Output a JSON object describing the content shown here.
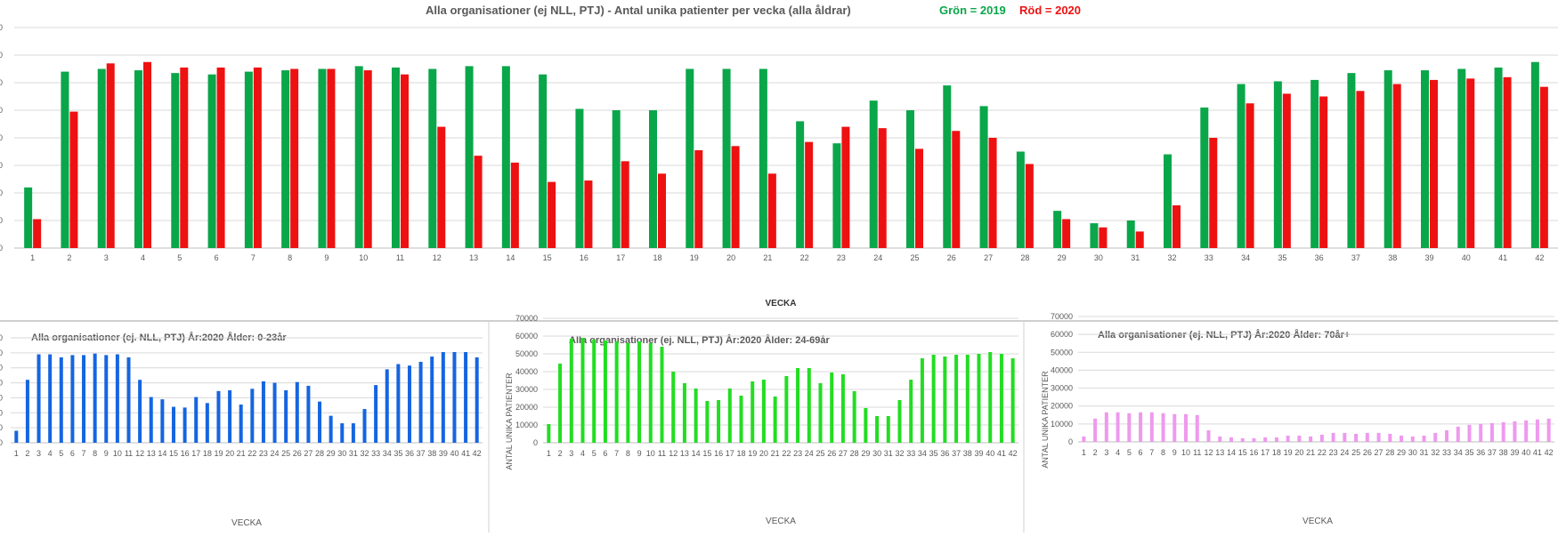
{
  "colors": {
    "green_2019": "#0aa64a",
    "red_2020": "#ee1111",
    "blue": "#1565e0",
    "lime": "#22dd22",
    "pink": "#ee99ee",
    "grid": "#d9d9d9",
    "text": "#595959"
  },
  "top": {
    "title_main": "Alla organisationer (ej NLL,  PTJ)   -   Antal unika patienter per vecka (alla åldrar)",
    "legend_green": "Grön = 2019",
    "legend_red": "Röd = 2020",
    "xlabel": "VECKA"
  },
  "bottom": {
    "left_title": "Alla organisationer (ej. NLL, PTJ)  År:2020   Ålder: 0-23år",
    "mid_title": "Alla organisationer (ej. NLL, PTJ)  År:2020   Ålder: 24-69år",
    "right_title": "Alla organisationer (ej. NLL, PTJ)  År:2020   Ålder: 70år+",
    "xlabel": "VECKA",
    "ylabel": "ANTAL UNIKA PATIENTER"
  },
  "chart_data": [
    {
      "type": "bar",
      "title": "Alla organisationer (ej NLL,  PTJ)   -   Antal unika patienter per vecka (alla åldrar)",
      "xlabel": "VECKA",
      "ylabel": "",
      "grid": true,
      "ylim": [
        0,
        8
      ],
      "tick_labels_visible": false,
      "categories": [
        "1",
        "2",
        "3",
        "4",
        "5",
        "6",
        "7",
        "8",
        "9",
        "10",
        "11",
        "12",
        "13",
        "14",
        "15",
        "16",
        "17",
        "18",
        "19",
        "20",
        "21",
        "22",
        "23",
        "24",
        "25",
        "26",
        "27",
        "28",
        "29",
        "30",
        "31",
        "32",
        "33",
        "34",
        "35",
        "36",
        "37",
        "38",
        "39",
        "40",
        "41",
        "42"
      ],
      "series": [
        {
          "name": "Grön = 2019",
          "color": "green_2019",
          "values": [
            2.2,
            6.4,
            6.5,
            6.45,
            6.35,
            6.3,
            6.4,
            6.45,
            6.5,
            6.6,
            6.55,
            6.5,
            6.6,
            6.6,
            6.3,
            5.05,
            5.0,
            5.0,
            6.5,
            6.5,
            6.5,
            4.6,
            3.8,
            5.35,
            5.0,
            5.9,
            5.15,
            3.5,
            1.35,
            0.9,
            1.0,
            3.4,
            5.1,
            5.95,
            6.05,
            6.1,
            6.35,
            6.45,
            6.45,
            6.5,
            6.55,
            6.75
          ]
        },
        {
          "name": "Röd = 2020",
          "color": "red_2020",
          "values": [
            1.05,
            4.95,
            6.7,
            6.75,
            6.55,
            6.55,
            6.55,
            6.5,
            6.5,
            6.45,
            6.3,
            4.4,
            3.35,
            3.1,
            2.4,
            2.45,
            3.15,
            2.7,
            3.55,
            3.7,
            2.7,
            3.85,
            4.4,
            4.35,
            3.6,
            4.25,
            4.0,
            3.05,
            1.05,
            0.75,
            0.6,
            1.55,
            4.0,
            5.25,
            5.6,
            5.5,
            5.7,
            5.95,
            6.1,
            6.15,
            6.2,
            5.85
          ]
        }
      ]
    },
    {
      "type": "bar",
      "title": "Alla organisationer (ej. NLL, PTJ)  År:2020   Ålder: 0-23år",
      "xlabel": "VECKA",
      "ylabel": "",
      "grid": true,
      "ylim": [
        0,
        7
      ],
      "tick_labels_visible": false,
      "categories": [
        "1",
        "2",
        "3",
        "4",
        "5",
        "6",
        "7",
        "8",
        "9",
        "10",
        "11",
        "12",
        "13",
        "14",
        "15",
        "16",
        "17",
        "18",
        "19",
        "20",
        "21",
        "22",
        "23",
        "24",
        "25",
        "26",
        "27",
        "28",
        "29",
        "30",
        "31",
        "32",
        "33",
        "34",
        "35",
        "36",
        "37",
        "38",
        "39",
        "40",
        "41",
        "42"
      ],
      "series": [
        {
          "name": "",
          "color": "blue",
          "values": [
            0.8,
            4.2,
            5.9,
            5.9,
            5.7,
            5.85,
            5.85,
            5.95,
            5.85,
            5.9,
            5.7,
            4.2,
            3.05,
            2.9,
            2.4,
            2.35,
            3.05,
            2.65,
            3.45,
            3.5,
            2.55,
            3.6,
            4.1,
            4.0,
            3.5,
            4.05,
            3.8,
            2.75,
            1.8,
            1.3,
            1.3,
            2.25,
            3.85,
            4.9,
            5.25,
            5.15,
            5.4,
            5.75,
            6.05,
            6.05,
            6.05,
            5.7
          ]
        }
      ]
    },
    {
      "type": "bar",
      "title": "Alla organisationer (ej. NLL, PTJ)  År:2020   Ålder: 24-69år",
      "xlabel": "VECKA",
      "ylabel": "ANTAL UNIKA PATIENTER",
      "grid": true,
      "ylim": [
        0,
        70000
      ],
      "yticks": [
        0,
        10000,
        20000,
        30000,
        40000,
        50000,
        60000,
        70000
      ],
      "categories": [
        "1",
        "2",
        "3",
        "4",
        "5",
        "6",
        "7",
        "8",
        "9",
        "10",
        "11",
        "12",
        "13",
        "14",
        "15",
        "16",
        "17",
        "18",
        "19",
        "20",
        "21",
        "22",
        "23",
        "24",
        "25",
        "26",
        "27",
        "28",
        "29",
        "30",
        "31",
        "32",
        "33",
        "34",
        "35",
        "36",
        "37",
        "38",
        "39",
        "40",
        "41",
        "42"
      ],
      "series": [
        {
          "name": "",
          "color": "lime",
          "values": [
            10500,
            44500,
            58500,
            59000,
            58000,
            57500,
            57000,
            56000,
            57000,
            56000,
            54000,
            40000,
            33500,
            30500,
            23500,
            24000,
            30500,
            26500,
            34500,
            35500,
            26000,
            37500,
            42000,
            42000,
            33500,
            39500,
            38500,
            29000,
            19500,
            15000,
            15000,
            24000,
            35500,
            47500,
            49500,
            48500,
            49500,
            49500,
            50000,
            51000,
            50000,
            47500
          ]
        }
      ]
    },
    {
      "type": "bar",
      "title": "Alla organisationer (ej. NLL, PTJ)  År:2020   Ålder: 70år+",
      "xlabel": "VECKA",
      "ylabel": "ANTAL UNIKA PATIENTER",
      "grid": true,
      "ylim": [
        0,
        70000
      ],
      "yticks": [
        0,
        10000,
        20000,
        30000,
        40000,
        50000,
        60000,
        70000
      ],
      "categories": [
        "1",
        "2",
        "3",
        "4",
        "5",
        "6",
        "7",
        "8",
        "9",
        "10",
        "11",
        "12",
        "13",
        "14",
        "15",
        "16",
        "17",
        "18",
        "19",
        "20",
        "21",
        "22",
        "23",
        "24",
        "25",
        "26",
        "27",
        "28",
        "29",
        "30",
        "31",
        "32",
        "33",
        "34",
        "35",
        "36",
        "37",
        "38",
        "39",
        "40",
        "41",
        "42"
      ],
      "series": [
        {
          "name": "",
          "color": "pink",
          "values": [
            3000,
            13000,
            16500,
            16500,
            16000,
            16500,
            16500,
            16000,
            15500,
            15500,
            15000,
            6500,
            3000,
            2500,
            2000,
            2000,
            2500,
            2500,
            3500,
            3500,
            3000,
            4000,
            5000,
            5000,
            4500,
            5000,
            5000,
            4500,
            3500,
            3000,
            3500,
            5000,
            6500,
            8500,
            9500,
            10000,
            10500,
            11000,
            11500,
            12000,
            12500,
            13000
          ]
        }
      ]
    }
  ]
}
